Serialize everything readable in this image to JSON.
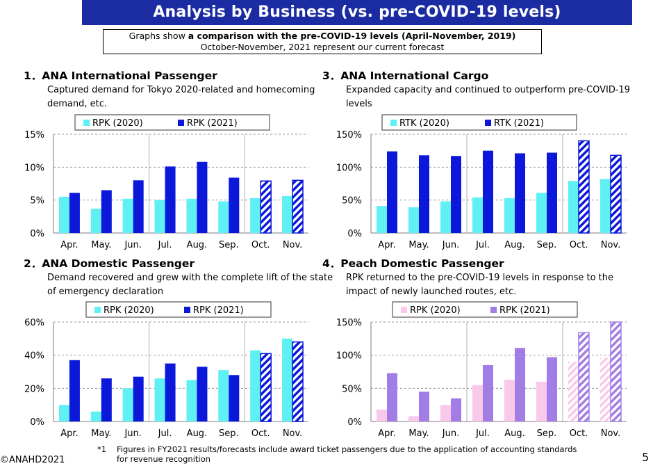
{
  "header": {
    "title": "Analysis by Business (vs. pre-COVID-19 levels)",
    "note_prefix": "Graphs show ",
    "note_bold": "a comparison with the pre-COVID-19 levels (April-November, 2019)",
    "note_line2": "October-November, 2021 represent our current forecast"
  },
  "sections": [
    {
      "title": "1．ANA International Passenger",
      "description": "Captured demand for Tokyo 2020-related and homecoming demand, etc."
    },
    {
      "title": "2．ANA Domestic Passenger",
      "description": "Demand recovered and grew with the complete lift of the state of emergency declaration"
    },
    {
      "title": "3．ANA International Cargo",
      "description": "Expanded capacity and continued to outperform pre-COVID-19 levels"
    },
    {
      "title": "4．Peach Domestic Passenger",
      "description": "RPK returned to the pre-COVID-19 levels in response to the impact of newly launched routes, etc."
    }
  ],
  "chart_data": [
    {
      "type": "bar",
      "categories": [
        "Apr.",
        "May.",
        "Jun.",
        "Jul.",
        "Aug.",
        "Sep.",
        "Oct.",
        "Nov."
      ],
      "series": [
        {
          "name": "RPK (2020)",
          "values": [
            5.5,
            3.7,
            5.2,
            5.0,
            5.2,
            4.8,
            5.3,
            5.6
          ],
          "color": "#5ff0f3"
        },
        {
          "name": "RPK (2021)",
          "values": [
            6.1,
            6.5,
            8.0,
            10.1,
            10.8,
            8.4,
            7.9,
            8.0
          ],
          "color": "#0b17d9"
        }
      ],
      "forecast_categories": [
        "Oct.",
        "Nov."
      ],
      "yticks": [
        "0%",
        "5%",
        "10%",
        "15%"
      ],
      "ylim": [
        0,
        15
      ]
    },
    {
      "type": "bar",
      "categories": [
        "Apr.",
        "May.",
        "Jun.",
        "Jul.",
        "Aug.",
        "Sep.",
        "Oct.",
        "Nov."
      ],
      "series": [
        {
          "name": "RPK (2020)",
          "values": [
            10,
            6,
            20,
            26,
            25,
            31,
            43,
            50
          ],
          "color": "#5ff0f3"
        },
        {
          "name": "RPK (2021)",
          "values": [
            37,
            26,
            27,
            35,
            33,
            28,
            41,
            48
          ],
          "color": "#0b17d9"
        }
      ],
      "forecast_categories": [
        "Oct.",
        "Nov."
      ],
      "yticks": [
        "0%",
        "20%",
        "40%",
        "60%"
      ],
      "ylim": [
        0,
        60
      ]
    },
    {
      "type": "bar",
      "categories": [
        "Apr.",
        "May.",
        "Jun.",
        "Jul.",
        "Aug.",
        "Sep.",
        "Oct.",
        "Nov."
      ],
      "series": [
        {
          "name": "RTK (2020)",
          "values": [
            41,
            39,
            48,
            54,
            53,
            61,
            79,
            82
          ],
          "color": "#5ff0f3"
        },
        {
          "name": "RTK (2021)",
          "values": [
            124,
            118,
            117,
            125,
            121,
            122,
            140,
            118
          ],
          "color": "#0b17d9"
        }
      ],
      "forecast_categories": [
        "Oct.",
        "Nov."
      ],
      "yticks": [
        "0%",
        "50%",
        "100%",
        "150%"
      ],
      "ylim": [
        0,
        150
      ]
    },
    {
      "type": "bar",
      "categories": [
        "Apr.",
        "May.",
        "Jun.",
        "Jul.",
        "Aug.",
        "Sep.",
        "Oct.",
        "Nov."
      ],
      "series": [
        {
          "name": "RPK (2020)",
          "values": [
            18,
            8,
            25,
            55,
            63,
            60,
            90,
            96
          ],
          "color": "#f9c9ec"
        },
        {
          "name": "RPK (2021)",
          "values": [
            73,
            45,
            35,
            85,
            111,
            97,
            134,
            150
          ],
          "color": "#a27de6"
        }
      ],
      "forecast_categories": [
        "Oct.",
        "Nov."
      ],
      "yticks": [
        "0%",
        "50%",
        "100%",
        "150%"
      ],
      "ylim": [
        0,
        150
      ]
    }
  ],
  "footnote": {
    "mark": "*1",
    "line1": "Figures in FY2021 results/forecasts include award ticket passengers due to the application of accounting standards",
    "line2": "for revenue recognition"
  },
  "copyright": "©ANAHD2021",
  "page_number": "5"
}
